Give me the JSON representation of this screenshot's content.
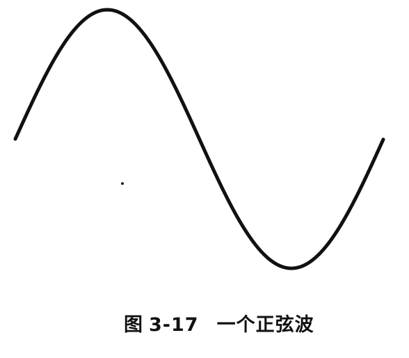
{
  "figure": {
    "label": "图",
    "number": "3-17",
    "title": "一个正弦波"
  },
  "chart_data": {
    "type": "line",
    "title": "",
    "xlabel": "",
    "ylabel": "",
    "series": [
      {
        "description": "one full period of a sine wave, starting near mid-line, rising to a crest, falling to a trough, and rising again",
        "x": [
          0.0,
          0.5,
          1.0,
          1.5,
          2.0,
          2.5,
          3.0,
          3.5,
          4.0,
          4.5,
          5.0,
          5.5,
          6.0,
          6.28
        ],
        "values": [
          0.0,
          0.479,
          0.841,
          0.997,
          0.909,
          0.598,
          0.141,
          -0.351,
          -0.757,
          -0.978,
          -0.959,
          -0.706,
          -0.279,
          0.0
        ]
      }
    ],
    "grid": false
  },
  "style": {
    "stroke_color": "#111111"
  }
}
